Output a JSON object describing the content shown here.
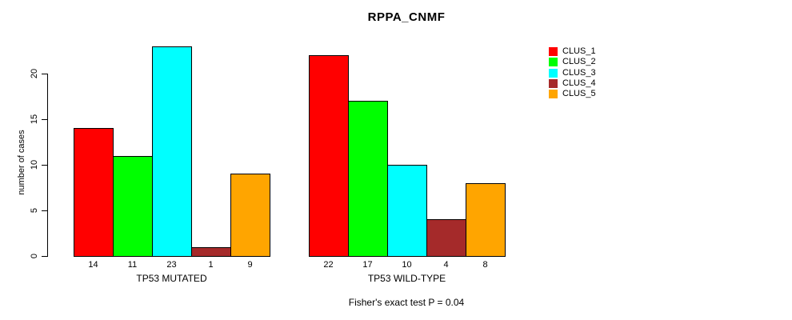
{
  "chart_data": {
    "type": "bar",
    "title": "RPPA_CNMF",
    "ylabel": "number of cases",
    "ylim": [
      0,
      20
    ],
    "yticks": [
      0,
      5,
      10,
      15,
      20
    ],
    "grid": false,
    "legend_position": "right",
    "series": [
      {
        "name": "CLUS_1",
        "color": "#FF0000"
      },
      {
        "name": "CLUS_2",
        "color": "#00FF00"
      },
      {
        "name": "CLUS_3",
        "color": "#00FFFF"
      },
      {
        "name": "CLUS_4",
        "color": "#A52A2A"
      },
      {
        "name": "CLUS_5",
        "color": "#FFA500"
      }
    ],
    "groups": [
      {
        "label": "TP53 MUTATED",
        "values": [
          14,
          11,
          23,
          1,
          9
        ]
      },
      {
        "label": "TP53 WILD-TYPE",
        "values": [
          22,
          17,
          10,
          4,
          8
        ]
      }
    ],
    "footnote": "Fisher's exact test P = 0.04"
  }
}
